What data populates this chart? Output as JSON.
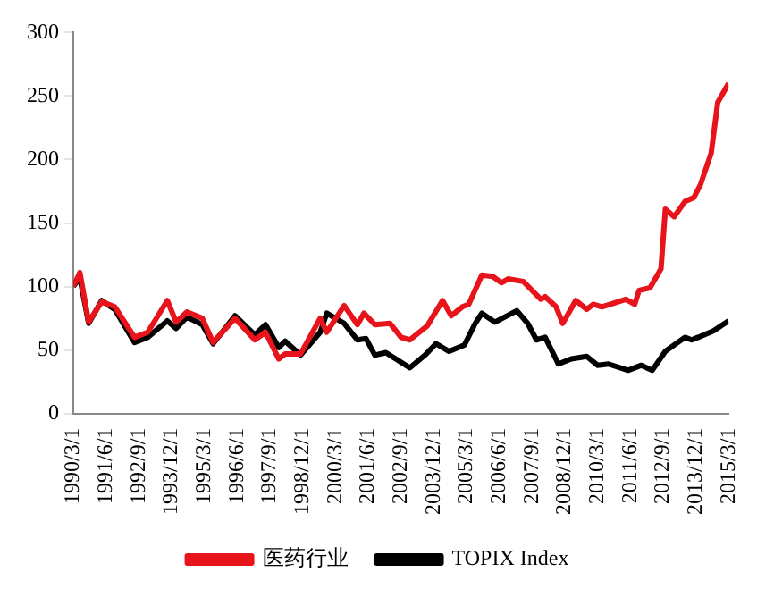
{
  "chart_data": {
    "type": "line",
    "legend": "bottom",
    "grid": false,
    "marker": "none",
    "line_style": "solid",
    "xlim": [
      "1990-03",
      "2015-03"
    ],
    "ylim": [
      0,
      300
    ],
    "yticks": [
      0,
      50,
      100,
      150,
      200,
      250,
      300
    ],
    "xticks": [
      {
        "value": "1990-03",
        "label": "1990/3/1"
      },
      {
        "value": "1991-06",
        "label": "1991/6/1"
      },
      {
        "value": "1992-09",
        "label": "1992/9/1"
      },
      {
        "value": "1993-12",
        "label": "1993/12/1"
      },
      {
        "value": "1995-03",
        "label": "1995/3/1"
      },
      {
        "value": "1996-06",
        "label": "1996/6/1"
      },
      {
        "value": "1997-09",
        "label": "1997/9/1"
      },
      {
        "value": "1998-12",
        "label": "1998/12/1"
      },
      {
        "value": "2000-03",
        "label": "2000/3/1"
      },
      {
        "value": "2001-06",
        "label": "2001/6/1"
      },
      {
        "value": "2002-09",
        "label": "2002/9/1"
      },
      {
        "value": "2003-12",
        "label": "2003/12/1"
      },
      {
        "value": "2005-03",
        "label": "2005/3/1"
      },
      {
        "value": "2006-06",
        "label": "2006/6/1"
      },
      {
        "value": "2007-09",
        "label": "2007/9/1"
      },
      {
        "value": "2008-12",
        "label": "2008/12/1"
      },
      {
        "value": "2010-03",
        "label": "2010/3/1"
      },
      {
        "value": "2011-06",
        "label": "2011/6/1"
      },
      {
        "value": "2012-09",
        "label": "2012/9/1"
      },
      {
        "value": "2013-12",
        "label": "2013/12/1"
      },
      {
        "value": "2015-03",
        "label": "2015/3/1"
      }
    ],
    "series": [
      {
        "name": "医药行业",
        "color": "#e8141b",
        "x": [
          "1990-03",
          "1990-06",
          "1990-10",
          "1991-04",
          "1991-10",
          "1992-07",
          "1993-01",
          "1993-10",
          "1994-02",
          "1994-07",
          "1995-02",
          "1995-07",
          "1996-05",
          "1997-02",
          "1997-07",
          "1998-01",
          "1998-04",
          "1998-11",
          "1999-08",
          "1999-11",
          "2000-07",
          "2001-01",
          "2001-04",
          "2001-09",
          "2002-04",
          "2002-09",
          "2003-01",
          "2003-09",
          "2004-04",
          "2004-08",
          "2005-01",
          "2005-04",
          "2005-10",
          "2006-03",
          "2006-07",
          "2006-10",
          "2007-05",
          "2008-01",
          "2008-03",
          "2008-08",
          "2008-11",
          "2009-05",
          "2009-10",
          "2010-01",
          "2010-05",
          "2011-04",
          "2011-08",
          "2011-10",
          "2012-03",
          "2012-08",
          "2012-10",
          "2013-02",
          "2013-07",
          "2013-11",
          "2014-02",
          "2014-07",
          "2014-10",
          "2015-03"
        ],
        "values": [
          100,
          111,
          72,
          88,
          84,
          60,
          64,
          89,
          72,
          80,
          75,
          56,
          75,
          58,
          64,
          43,
          47,
          47,
          75,
          64,
          85,
          70,
          79,
          70,
          71,
          60,
          58,
          69,
          89,
          77,
          84,
          86,
          109,
          108,
          103,
          106,
          104,
          90,
          92,
          84,
          71,
          89,
          82,
          86,
          84,
          90,
          86,
          97,
          99,
          114,
          161,
          155,
          167,
          170,
          180,
          205,
          245,
          260
        ]
      },
      {
        "name": "TOPIX Index",
        "color": "#000000",
        "x": [
          "1990-03",
          "1990-06",
          "1990-10",
          "1991-04",
          "1991-10",
          "1992-07",
          "1993-01",
          "1993-10",
          "1994-02",
          "1994-07",
          "1995-02",
          "1995-07",
          "1996-05",
          "1997-02",
          "1997-07",
          "1998-01",
          "1998-04",
          "1998-11",
          "1999-08",
          "1999-11",
          "2000-07",
          "2001-01",
          "2001-05",
          "2001-09",
          "2002-02",
          "2003-01",
          "2003-08",
          "2004-01",
          "2004-07",
          "2005-02",
          "2005-07",
          "2005-10",
          "2006-04",
          "2007-02",
          "2007-07",
          "2007-11",
          "2008-03",
          "2008-09",
          "2009-03",
          "2009-10",
          "2010-03",
          "2010-08",
          "2011-05",
          "2011-11",
          "2012-04",
          "2012-10",
          "2013-07",
          "2013-10",
          "2014-01",
          "2014-08",
          "2015-03"
        ],
        "values": [
          100,
          107,
          71,
          89,
          82,
          56,
          60,
          73,
          67,
          76,
          70,
          55,
          77,
          62,
          70,
          52,
          57,
          46,
          64,
          79,
          71,
          58,
          59,
          46,
          48,
          36,
          46,
          55,
          49,
          54,
          71,
          79,
          72,
          81,
          71,
          58,
          60,
          39,
          43,
          45,
          38,
          39,
          34,
          38,
          34,
          49,
          60,
          58,
          60,
          65,
          73
        ]
      }
    ]
  }
}
